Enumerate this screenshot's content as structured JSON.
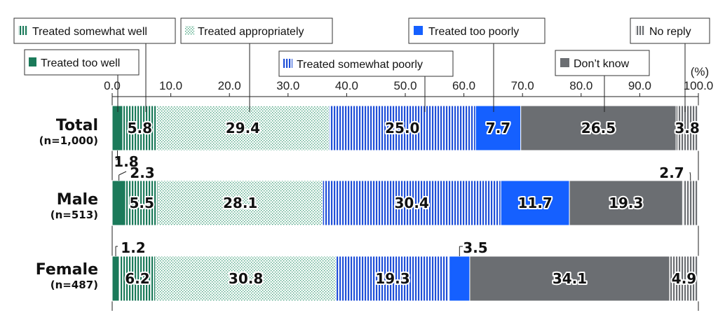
{
  "chart_data": {
    "type": "bar",
    "orientation": "horizontal",
    "stacked": true,
    "unit_label": "(%)",
    "xlim": [
      0,
      100
    ],
    "x_ticks": [
      "0.0",
      "10.0",
      "20.0",
      "30.0",
      "40.0",
      "50.0",
      "60.0",
      "70.0",
      "80.0",
      "90.0",
      "100.0"
    ],
    "grid": false,
    "legend_placement": "top",
    "categories": [
      {
        "name": "Total",
        "n_label": "(n=1,000)"
      },
      {
        "name": "Male",
        "n_label": "(n=513)"
      },
      {
        "name": "Female",
        "n_label": "(n=487)"
      }
    ],
    "series": [
      {
        "name": "Treated too well",
        "color": "#1b7a5a",
        "pattern": "solid",
        "values": [
          1.8,
          2.3,
          1.2
        ],
        "labels": [
          "1.8",
          "2.3",
          "1.2"
        ]
      },
      {
        "name": "Treated somewhat well",
        "color": "#1b7a5a",
        "pattern": "vertical-stripes",
        "values": [
          5.8,
          5.5,
          6.2
        ],
        "labels": [
          "5.8",
          "5.5",
          "6.2"
        ]
      },
      {
        "name": "Treated appropriately",
        "color": "#3f9c7c",
        "pattern": "dots",
        "values": [
          29.4,
          28.1,
          30.8
        ],
        "labels": [
          "29.4",
          "28.1",
          "30.8"
        ]
      },
      {
        "name": "Treated somewhat poorly",
        "color": "#1f4fd8",
        "pattern": "vertical-stripes",
        "values": [
          25.0,
          30.4,
          19.3
        ],
        "labels": [
          "25.0",
          "30.4",
          "19.3"
        ]
      },
      {
        "name": "Treated too poorly",
        "color": "#1560ff",
        "pattern": "solid",
        "values": [
          7.7,
          11.7,
          3.5
        ],
        "labels": [
          "7.7",
          "11.7",
          "3.5"
        ]
      },
      {
        "name": "Don’t know",
        "color": "#6b6e72",
        "pattern": "solid",
        "values": [
          26.5,
          19.3,
          34.1
        ],
        "labels": [
          "26.5",
          "19.3",
          "34.1"
        ]
      },
      {
        "name": "No reply",
        "color": "#6b6e72",
        "pattern": "vertical-stripes",
        "values": [
          3.8,
          2.7,
          4.9
        ],
        "labels": [
          "3.8",
          "2.7",
          "4.9"
        ]
      }
    ]
  }
}
